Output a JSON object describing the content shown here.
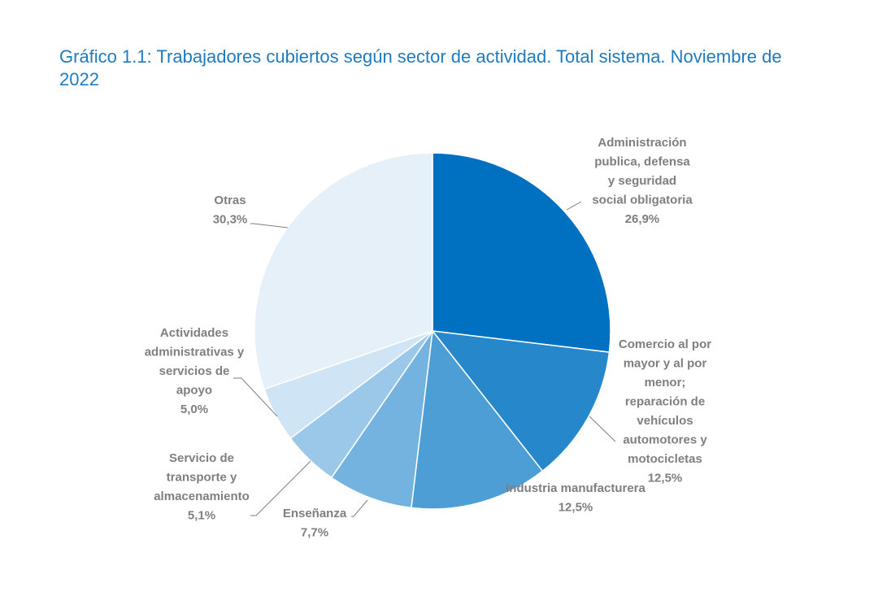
{
  "title": "Gráfico 1.1: Trabajadores cubiertos según sector de actividad. Total sistema. Noviembre de 2022",
  "chart_data": {
    "type": "pie",
    "title": "Gráfico 1.1: Trabajadores cubiertos según sector de actividad. Total sistema. Noviembre de 2022",
    "slices": [
      {
        "label": "Administración publica, defensa y seguridad social obligatoria",
        "label_lines": [
          "Administración",
          "publica, defensa",
          "y seguridad",
          "social obligatoria"
        ],
        "value": 26.9,
        "value_label": "26,9%",
        "color": "#0070c0"
      },
      {
        "label": "Comercio al por mayor y al por menor; reparación de vehículos automotores y motocicletas",
        "label_lines": [
          "Comercio al por",
          "mayor y al por",
          "menor;",
          "reparación de",
          "vehículos",
          "automotores y",
          "motocicletas"
        ],
        "value": 12.5,
        "value_label": "12,5%",
        "color": "#2787cb"
      },
      {
        "label": "Industria manufacturera",
        "label_lines": [
          "Industria manufacturera"
        ],
        "value": 12.5,
        "value_label": "12,5%",
        "color": "#4c9ed4"
      },
      {
        "label": "Enseñanza",
        "label_lines": [
          "Enseñanza"
        ],
        "value": 7.7,
        "value_label": "7,7%",
        "color": "#74b3df"
      },
      {
        "label": "Servicio de transporte y almacenamiento",
        "label_lines": [
          "Servicio de",
          "transporte y",
          "almacenamiento"
        ],
        "value": 5.1,
        "value_label": "5,1%",
        "color": "#9bc8e8"
      },
      {
        "label": "Actividades administrativas y servicios de apoyo",
        "label_lines": [
          "Actividades",
          "administrativas y",
          "servicios de",
          "apoyo"
        ],
        "value": 5.0,
        "value_label": "5,0%",
        "color": "#cfe4f4"
      },
      {
        "label": "Otras",
        "label_lines": [
          "Otras"
        ],
        "value": 30.3,
        "value_label": "30,3%",
        "color": "#e6f0f8"
      }
    ]
  }
}
